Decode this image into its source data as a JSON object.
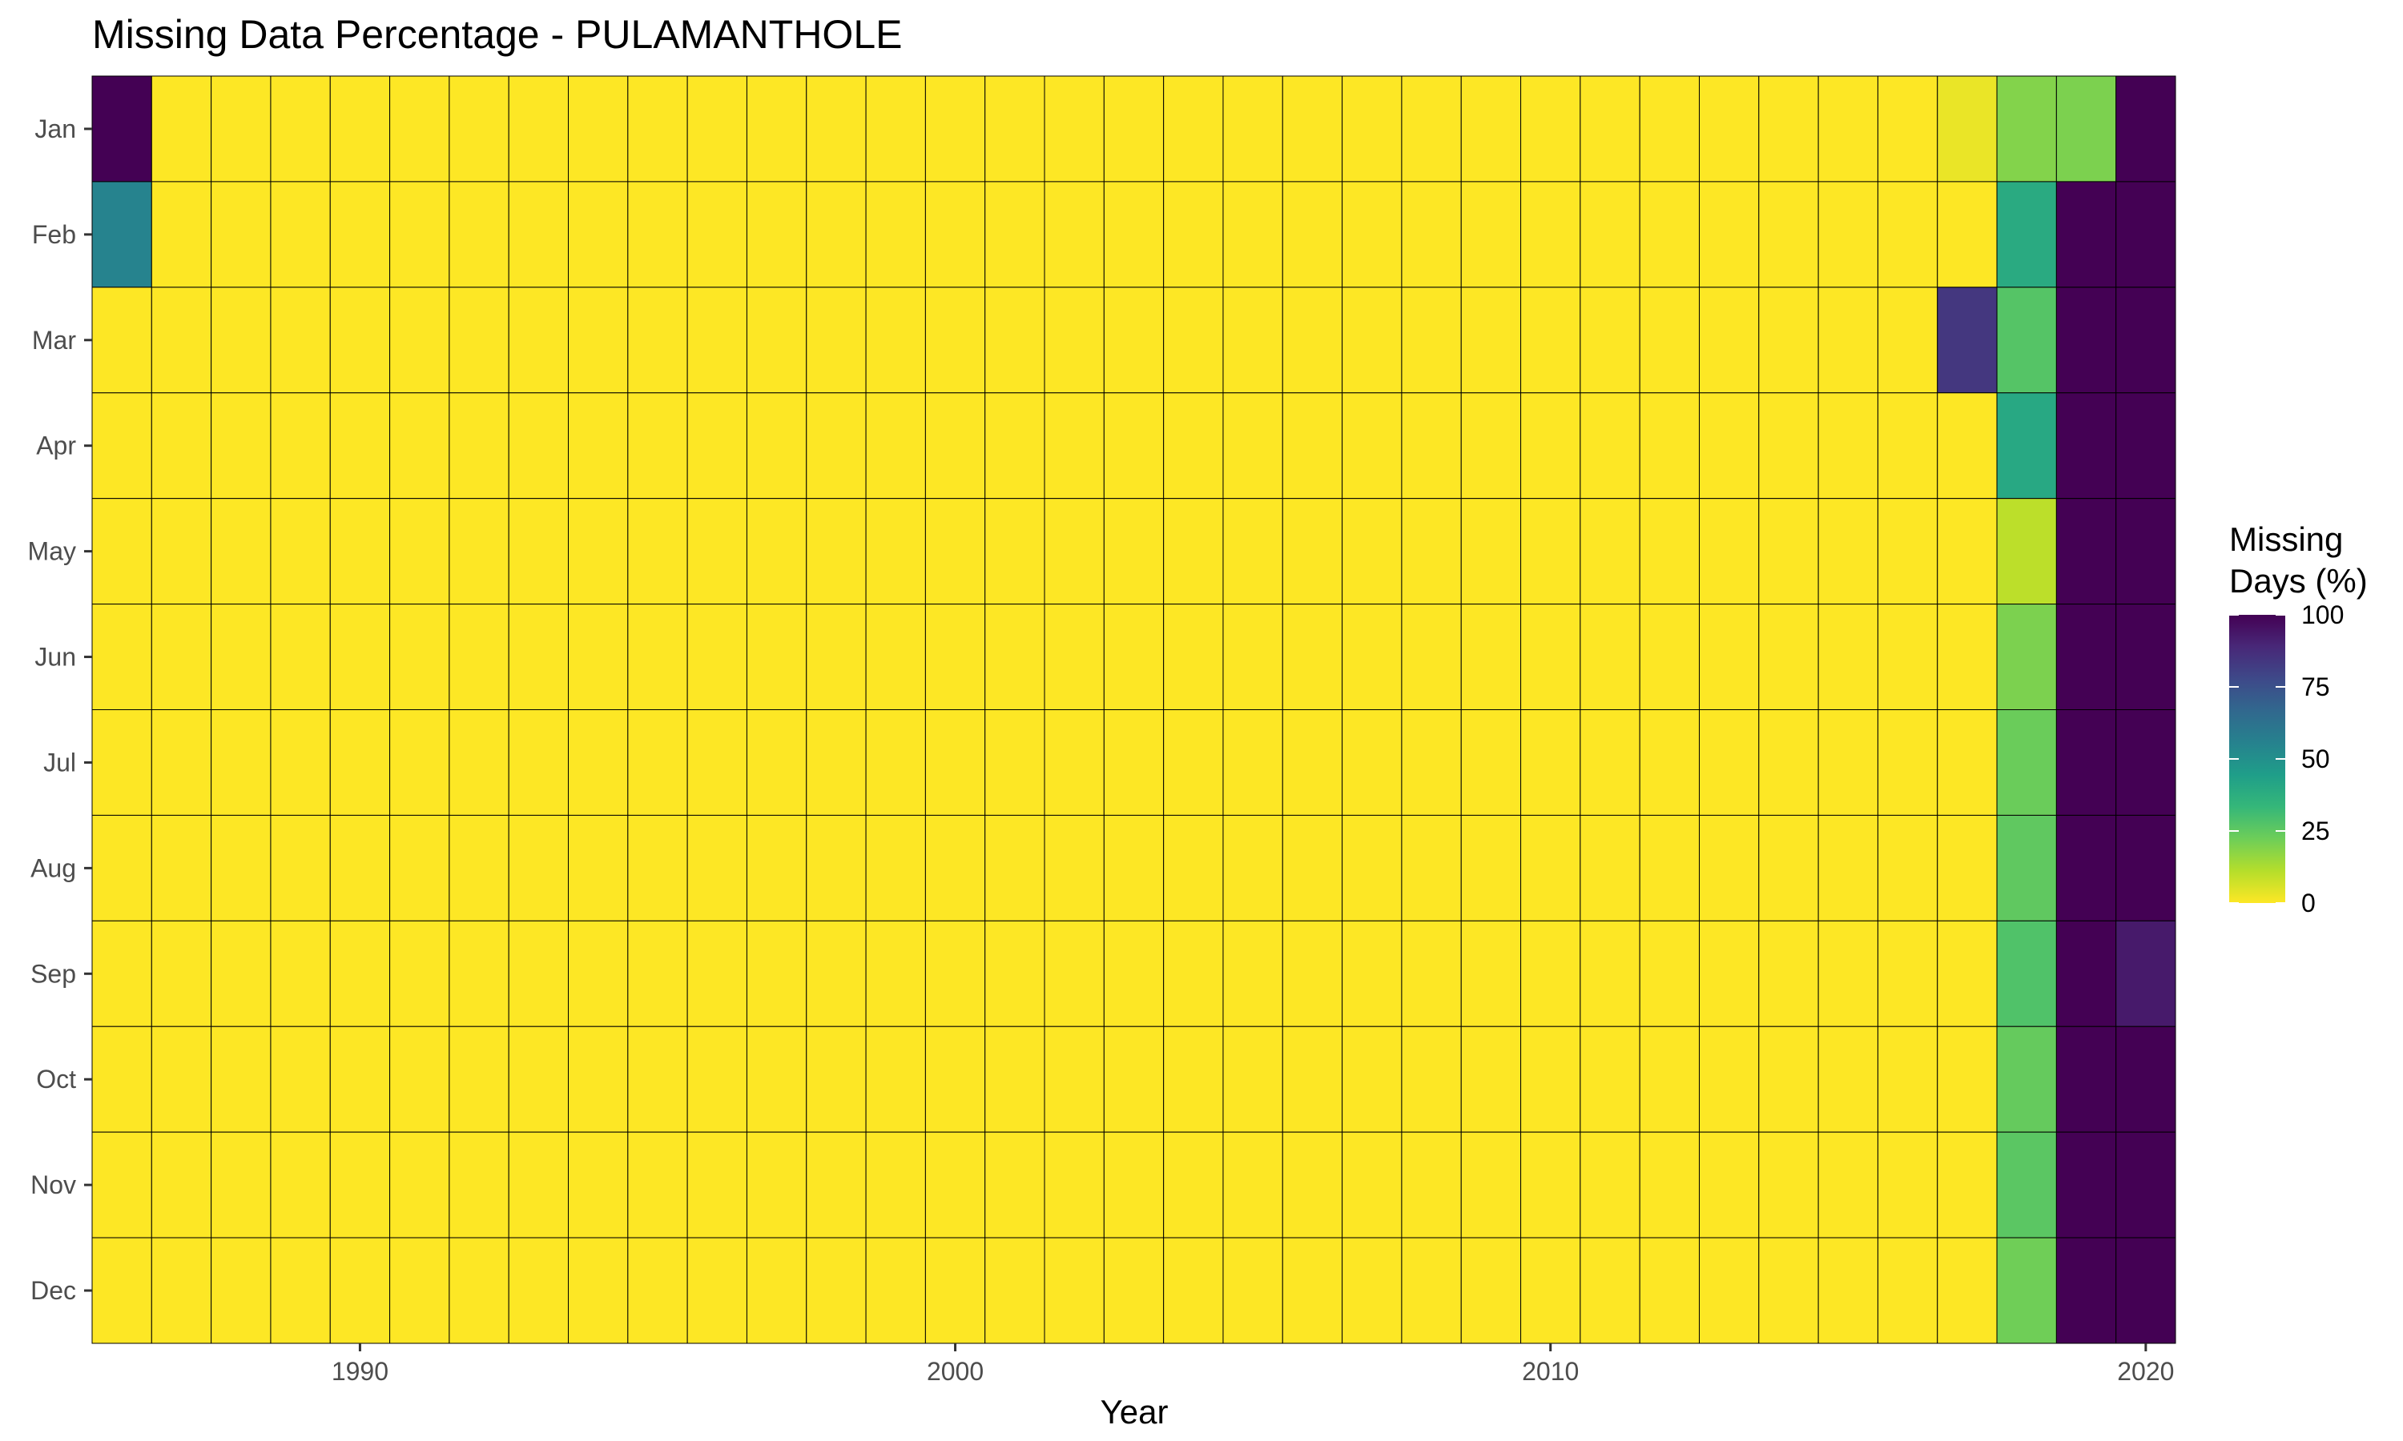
{
  "chart_data": {
    "type": "heatmap",
    "title": "Missing Data Percentage - PULAMANTHOLE",
    "xlabel": "Year",
    "ylabel": "",
    "years": [
      1986,
      1987,
      1988,
      1989,
      1990,
      1991,
      1992,
      1993,
      1994,
      1995,
      1996,
      1997,
      1998,
      1999,
      2000,
      2001,
      2002,
      2003,
      2004,
      2005,
      2006,
      2007,
      2008,
      2009,
      2010,
      2011,
      2012,
      2013,
      2014,
      2015,
      2016,
      2017,
      2018,
      2019,
      2020
    ],
    "months": [
      "Jan",
      "Feb",
      "Mar",
      "Apr",
      "May",
      "Jun",
      "Jul",
      "Aug",
      "Sep",
      "Oct",
      "Nov",
      "Dec"
    ],
    "x_ticks": [
      1990,
      2000,
      2010,
      2020
    ],
    "x_tick_labels": [
      "1990",
      "2000",
      "2010",
      "2020"
    ],
    "default_value": 0,
    "nonzero_cells": [
      {
        "year": 1986,
        "month": "Jan",
        "value": 100
      },
      {
        "year": 1986,
        "month": "Feb",
        "value": 55
      },
      {
        "year": 2017,
        "month": "Jan",
        "value": 3
      },
      {
        "year": 2017,
        "month": "Mar",
        "value": 84
      },
      {
        "year": 2018,
        "month": "Jan",
        "value": 19
      },
      {
        "year": 2018,
        "month": "Feb",
        "value": 39
      },
      {
        "year": 2018,
        "month": "Mar",
        "value": 27
      },
      {
        "year": 2018,
        "month": "Apr",
        "value": 40
      },
      {
        "year": 2018,
        "month": "May",
        "value": 10
      },
      {
        "year": 2018,
        "month": "Jun",
        "value": 20
      },
      {
        "year": 2018,
        "month": "Jul",
        "value": 23
      },
      {
        "year": 2018,
        "month": "Aug",
        "value": 25
      },
      {
        "year": 2018,
        "month": "Sep",
        "value": 28
      },
      {
        "year": 2018,
        "month": "Oct",
        "value": 24
      },
      {
        "year": 2018,
        "month": "Nov",
        "value": 26
      },
      {
        "year": 2018,
        "month": "Dec",
        "value": 22
      },
      {
        "year": 2019,
        "month": "Jan",
        "value": 20
      },
      {
        "year": 2019,
        "month": "Feb",
        "value": 100
      },
      {
        "year": 2019,
        "month": "Mar",
        "value": 100
      },
      {
        "year": 2019,
        "month": "Apr",
        "value": 100
      },
      {
        "year": 2019,
        "month": "May",
        "value": 100
      },
      {
        "year": 2019,
        "month": "Jun",
        "value": 100
      },
      {
        "year": 2019,
        "month": "Jul",
        "value": 100
      },
      {
        "year": 2019,
        "month": "Aug",
        "value": 100
      },
      {
        "year": 2019,
        "month": "Sep",
        "value": 100
      },
      {
        "year": 2019,
        "month": "Oct",
        "value": 100
      },
      {
        "year": 2019,
        "month": "Nov",
        "value": 100
      },
      {
        "year": 2019,
        "month": "Dec",
        "value": 100
      },
      {
        "year": 2020,
        "month": "Jan",
        "value": 100
      },
      {
        "year": 2020,
        "month": "Feb",
        "value": 100
      },
      {
        "year": 2020,
        "month": "Mar",
        "value": 100
      },
      {
        "year": 2020,
        "month": "Apr",
        "value": 100
      },
      {
        "year": 2020,
        "month": "May",
        "value": 100
      },
      {
        "year": 2020,
        "month": "Jun",
        "value": 100
      },
      {
        "year": 2020,
        "month": "Jul",
        "value": 100
      },
      {
        "year": 2020,
        "month": "Aug",
        "value": 100
      },
      {
        "year": 2020,
        "month": "Sep",
        "value": 93
      },
      {
        "year": 2020,
        "month": "Oct",
        "value": 100
      },
      {
        "year": 2020,
        "month": "Nov",
        "value": 100
      },
      {
        "year": 2020,
        "month": "Dec",
        "value": 100
      }
    ],
    "legend": {
      "title_line1": "Missing",
      "title_line2": "Days (%)",
      "ticks": [
        0,
        25,
        50,
        75,
        100
      ],
      "tick_labels": [
        "0",
        "25",
        "50",
        "75",
        "100"
      ],
      "range": [
        0,
        100
      ],
      "colormap": "viridis (reversed: 0 = yellow, 100 = purple)",
      "placement": "right"
    },
    "colors": {
      "viridis_stops": [
        "#fde725",
        "#b5de2b",
        "#6ece58",
        "#35b779",
        "#1f9e89",
        "#26828e",
        "#31688e",
        "#3e4989",
        "#482878",
        "#440154"
      ],
      "cell_border": "#000000"
    }
  }
}
